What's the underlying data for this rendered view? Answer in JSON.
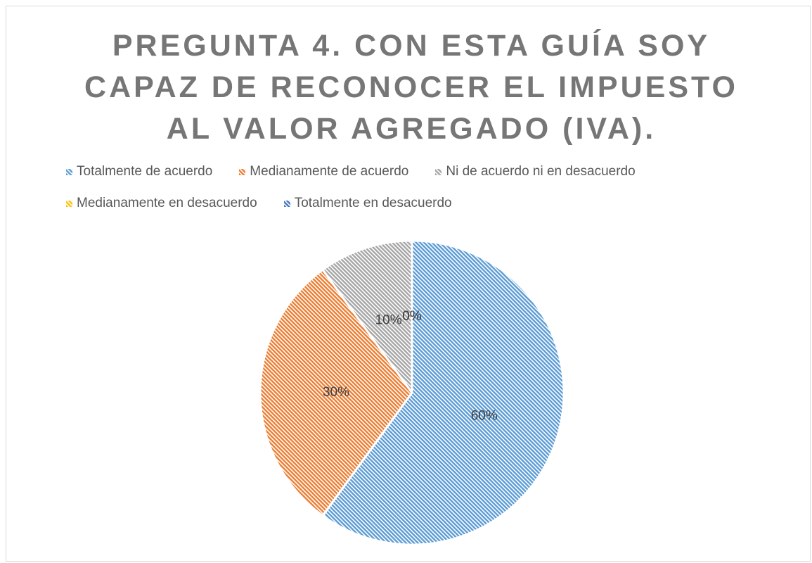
{
  "chart_data": {
    "type": "pie",
    "title": "PREGUNTA 4. CON ESTA GUÍA SOY CAPAZ DE RECONOCER EL IMPUESTO AL VALOR AGREGADO (IVA).",
    "categories": [
      "Totalmente de acuerdo",
      "Medianamente de acuerdo",
      "Ni de acuerdo ni en desacuerdo",
      "Medianamente en desacuerdo",
      "Totalmente en desacuerdo"
    ],
    "values": [
      60,
      30,
      10,
      0,
      0
    ],
    "value_labels": [
      "60%",
      "30%",
      "10%",
      "0%",
      "0%"
    ],
    "colors": [
      "#5b9bd5",
      "#ed7d31",
      "#a5a5a5",
      "#ffc000",
      "#4472c4"
    ],
    "legend": "top"
  }
}
